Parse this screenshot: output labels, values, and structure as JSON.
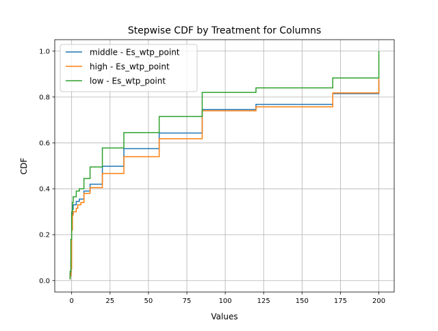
{
  "chart_data": {
    "type": "line",
    "step": true,
    "title": "Stepwise CDF by Treatment for Columns",
    "xlabel": "Values",
    "ylabel": "CDF",
    "xlim": [
      -11,
      210
    ],
    "ylim": [
      -0.05,
      1.05
    ],
    "xticks": [
      0,
      25,
      50,
      75,
      100,
      125,
      150,
      175,
      200
    ],
    "yticks": [
      0.0,
      0.2,
      0.4,
      0.6,
      0.8,
      1.0
    ],
    "xtick_labels": [
      "0",
      "25",
      "50",
      "75",
      "100",
      "125",
      "150",
      "175",
      "200"
    ],
    "ytick_labels": [
      "0.0",
      "0.2",
      "0.4",
      "0.6",
      "0.8",
      "1.0"
    ],
    "grid": true,
    "legend": "top-left",
    "series": [
      {
        "name": "middle - Es_wtp_point",
        "color": "#1f77b4",
        "points": [
          [
            -1,
            0.005
          ],
          [
            -1,
            0.03
          ],
          [
            -0.5,
            0.03
          ],
          [
            -0.5,
            0.09
          ],
          [
            0,
            0.09
          ],
          [
            0,
            0.28
          ],
          [
            0.5,
            0.28
          ],
          [
            0.5,
            0.31
          ],
          [
            1,
            0.31
          ],
          [
            1,
            0.33
          ],
          [
            3,
            0.33
          ],
          [
            3,
            0.345
          ],
          [
            5,
            0.345
          ],
          [
            5,
            0.355
          ],
          [
            8,
            0.355
          ],
          [
            8,
            0.39
          ],
          [
            12,
            0.39
          ],
          [
            12,
            0.42
          ],
          [
            20,
            0.42
          ],
          [
            20,
            0.498
          ],
          [
            34,
            0.498
          ],
          [
            34,
            0.575
          ],
          [
            57,
            0.575
          ],
          [
            57,
            0.643
          ],
          [
            85,
            0.643
          ],
          [
            85,
            0.745
          ],
          [
            120,
            0.745
          ],
          [
            120,
            0.768
          ],
          [
            170,
            0.768
          ],
          [
            170,
            0.815
          ],
          [
            200,
            0.815
          ],
          [
            200,
            0.875
          ]
        ]
      },
      {
        "name": "high - Es_wtp_point",
        "color": "#ff7f0e",
        "points": [
          [
            -1,
            0.005
          ],
          [
            -1,
            0.02
          ],
          [
            -0.5,
            0.02
          ],
          [
            -0.5,
            0.05
          ],
          [
            0,
            0.05
          ],
          [
            0,
            0.22
          ],
          [
            0.5,
            0.22
          ],
          [
            0.5,
            0.285
          ],
          [
            1,
            0.285
          ],
          [
            1,
            0.3
          ],
          [
            3,
            0.3
          ],
          [
            3,
            0.315
          ],
          [
            4,
            0.315
          ],
          [
            4,
            0.33
          ],
          [
            6,
            0.33
          ],
          [
            6,
            0.34
          ],
          [
            8,
            0.34
          ],
          [
            8,
            0.38
          ],
          [
            12,
            0.38
          ],
          [
            12,
            0.405
          ],
          [
            20,
            0.405
          ],
          [
            20,
            0.467
          ],
          [
            34,
            0.467
          ],
          [
            34,
            0.54
          ],
          [
            57,
            0.54
          ],
          [
            57,
            0.618
          ],
          [
            85,
            0.618
          ],
          [
            85,
            0.74
          ],
          [
            120,
            0.74
          ],
          [
            120,
            0.757
          ],
          [
            170,
            0.757
          ],
          [
            170,
            0.818
          ],
          [
            200,
            0.818
          ],
          [
            200,
            0.88
          ]
        ]
      },
      {
        "name": "low - Es_wtp_point",
        "color": "#2ca02c",
        "points": [
          [
            -1,
            0.005
          ],
          [
            -1,
            0.04
          ],
          [
            -0.5,
            0.04
          ],
          [
            -0.5,
            0.18
          ],
          [
            0,
            0.18
          ],
          [
            0,
            0.3
          ],
          [
            0.5,
            0.3
          ],
          [
            0.5,
            0.34
          ],
          [
            1,
            0.34
          ],
          [
            1,
            0.365
          ],
          [
            3,
            0.365
          ],
          [
            3,
            0.39
          ],
          [
            5,
            0.39
          ],
          [
            5,
            0.4
          ],
          [
            8,
            0.4
          ],
          [
            8,
            0.445
          ],
          [
            12,
            0.445
          ],
          [
            12,
            0.495
          ],
          [
            20,
            0.495
          ],
          [
            20,
            0.578
          ],
          [
            34,
            0.578
          ],
          [
            34,
            0.645
          ],
          [
            57,
            0.645
          ],
          [
            57,
            0.715
          ],
          [
            85,
            0.715
          ],
          [
            85,
            0.82
          ],
          [
            120,
            0.82
          ],
          [
            120,
            0.84
          ],
          [
            170,
            0.84
          ],
          [
            170,
            0.883
          ],
          [
            200,
            0.883
          ],
          [
            200,
            1.0
          ]
        ]
      }
    ]
  }
}
